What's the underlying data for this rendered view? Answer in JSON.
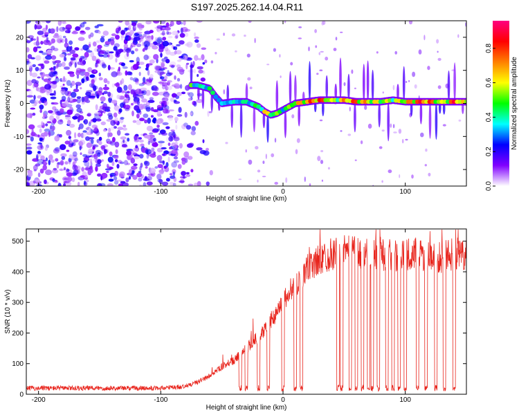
{
  "title": "S197.2025.262.14.04.R11",
  "colorbar": {
    "label": "Normalized spectral amplitude",
    "ticks": [
      "0.0",
      "0.2",
      "0.4",
      "0.6",
      "0.8"
    ],
    "tick_values": [
      0.0,
      0.2,
      0.4,
      0.6,
      0.8
    ],
    "range": [
      0,
      0.96
    ],
    "colors": [
      "#ffffff",
      "#8000ff",
      "#0000ff",
      "#00ffff",
      "#00ff00",
      "#ffff00",
      "#ff8000",
      "#ff0000",
      "#ff0080"
    ]
  },
  "chart_data": [
    {
      "type": "heatmap",
      "title": "",
      "xlabel": "Height of straight line (km)",
      "ylabel": "Frequency (Hz)",
      "xlim": [
        -210,
        150
      ],
      "ylim": [
        -25,
        25
      ],
      "xticks": [
        -200,
        -100,
        0,
        100
      ],
      "xtick_labels": [
        "-200",
        "-100",
        "0",
        "100"
      ],
      "yticks": [
        -20,
        -10,
        0,
        10,
        20
      ],
      "ytick_labels": [
        "-20",
        "-10",
        "0",
        "10",
        "20"
      ],
      "noise_region_x": [
        -210,
        -60
      ],
      "ridge": {
        "x": [
          -75,
          -70,
          -60,
          -55,
          -50,
          -40,
          -30,
          -20,
          -15,
          -10,
          -5,
          0,
          5,
          10,
          20,
          30,
          40,
          50,
          60,
          70,
          80,
          90,
          100,
          110,
          120,
          130,
          140,
          150
        ],
        "freq": [
          5.5,
          5.5,
          4.5,
          2,
          0,
          0.5,
          0.5,
          -1,
          -2.5,
          -3.5,
          -3,
          -2,
          -1,
          0,
          0.5,
          1,
          1,
          1,
          0.5,
          0.5,
          0.5,
          1,
          0.5,
          0.5,
          0.5,
          0.5,
          0.5,
          0.5
        ],
        "amplitude": [
          0.55,
          0.4,
          0.5,
          0.4,
          0.35,
          0.4,
          0.45,
          0.5,
          0.7,
          0.6,
          0.55,
          0.5,
          0.55,
          0.7,
          0.8,
          0.9,
          0.6,
          0.75,
          0.85,
          0.7,
          0.65,
          0.6,
          0.7,
          0.9,
          0.85,
          0.6,
          0.9,
          0.6
        ]
      }
    },
    {
      "type": "line",
      "title": "",
      "xlabel": "Height of straight line (km)",
      "ylabel": "SNR (10 * v/v)",
      "xlim": [
        -210,
        150
      ],
      "ylim": [
        0,
        540
      ],
      "xticks": [
        -200,
        -100,
        0,
        100
      ],
      "xtick_labels": [
        "-200",
        "-100",
        "0",
        "100"
      ],
      "yticks": [
        0,
        100,
        200,
        300,
        400,
        500
      ],
      "ytick_labels": [
        "0",
        "100",
        "200",
        "300",
        "400",
        "500"
      ],
      "color": "#e8241c",
      "series": [
        {
          "name": "SNR",
          "x": [
            -210,
            -150,
            -100,
            -80,
            -70,
            -60,
            -50,
            -40,
            -30,
            -20,
            -10,
            0,
            10,
            20,
            30,
            40,
            50,
            60,
            70,
            80,
            90,
            100,
            110,
            120,
            130,
            140,
            150
          ],
          "values": [
            20,
            20,
            20,
            25,
            40,
            60,
            90,
            110,
            150,
            190,
            240,
            300,
            360,
            410,
            440,
            460,
            465,
            460,
            455,
            460,
            450,
            455,
            460,
            455,
            450,
            460,
            450
          ]
        }
      ],
      "dropouts_x": [
        -35,
        -30,
        -20,
        -12,
        0,
        10,
        15,
        45,
        48,
        55,
        60,
        65,
        70,
        73,
        78,
        85,
        90,
        95,
        100,
        110,
        117,
        125,
        132,
        140
      ]
    }
  ]
}
